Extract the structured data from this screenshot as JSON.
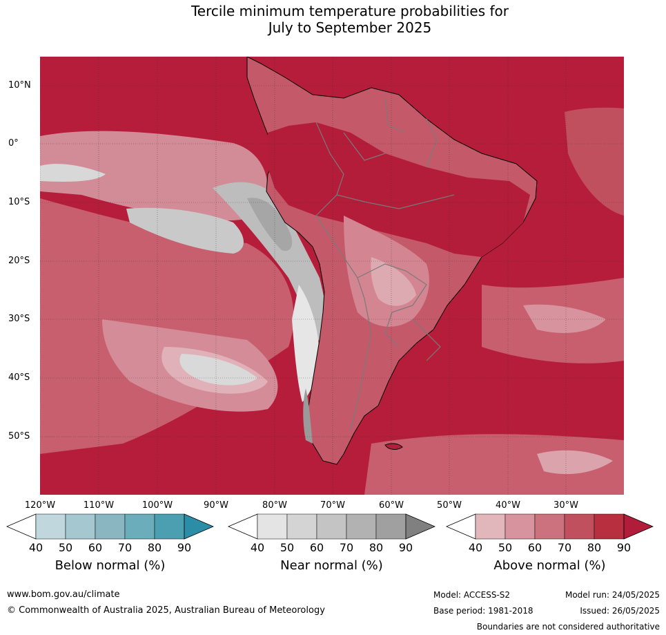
{
  "title": {
    "line1": "Tercile minimum temperature probabilities for",
    "line2": "July to September 2025"
  },
  "map": {
    "region": "South America",
    "lat_labels": [
      "10°N",
      "0°",
      "10°S",
      "20°S",
      "30°S",
      "40°S",
      "50°S"
    ],
    "lon_labels": [
      "120°W",
      "110°W",
      "100°W",
      "90°W",
      "80°W",
      "70°W",
      "60°W",
      "50°W",
      "40°W",
      "30°W"
    ],
    "colors": {
      "ocean_dominant": "#b51d3b",
      "above_shades": [
        "#ffffff",
        "#e2b7bc",
        "#d8949e",
        "#cc727f",
        "#c1505f",
        "#b8303f",
        "#b01c3a"
      ],
      "near_shades": [
        "#ffffff",
        "#e4e4e4",
        "#d4d4d4",
        "#c4c4c4",
        "#b2b2b2",
        "#a0a0a0",
        "#808080"
      ],
      "below_shades": [
        "#ffffff",
        "#c0d7de",
        "#a5c7cf",
        "#8ab6c2",
        "#6badba",
        "#4b9fb0",
        "#2b8ea6"
      ],
      "coastline": "#000000",
      "borders": "#7a7a7a"
    }
  },
  "colorbars": [
    {
      "name": "below",
      "label": "Below normal (%)",
      "ticks": [
        "40",
        "50",
        "60",
        "70",
        "80",
        "90"
      ],
      "colors": [
        "#ffffff",
        "#c0d7de",
        "#a5c7cf",
        "#8ab6c2",
        "#6badba",
        "#4b9fb0",
        "#2b8ea6"
      ]
    },
    {
      "name": "near",
      "label": "Near normal (%)",
      "ticks": [
        "40",
        "50",
        "60",
        "70",
        "80",
        "90"
      ],
      "colors": [
        "#ffffff",
        "#e4e4e4",
        "#d4d4d4",
        "#c4c4c4",
        "#b2b2b2",
        "#a0a0a0",
        "#808080"
      ]
    },
    {
      "name": "above",
      "label": "Above normal (%)",
      "ticks": [
        "40",
        "50",
        "60",
        "70",
        "80",
        "90"
      ],
      "colors": [
        "#ffffff",
        "#e2b7bc",
        "#d8949e",
        "#cc727f",
        "#c1505f",
        "#b8303f",
        "#b01c3a"
      ]
    }
  ],
  "footer": {
    "website": "www.bom.gov.au/climate",
    "copyright": "© Commonwealth of Australia 2025, Australian Bureau of Meteorology",
    "model": "Model: ACCESS-S2",
    "base_period": "Base period: 1981-2018",
    "model_run": "Model run: 24/05/2025",
    "issued": "Issued: 26/05/2025",
    "disclaimer": "Boundaries are not considered authoritative"
  }
}
